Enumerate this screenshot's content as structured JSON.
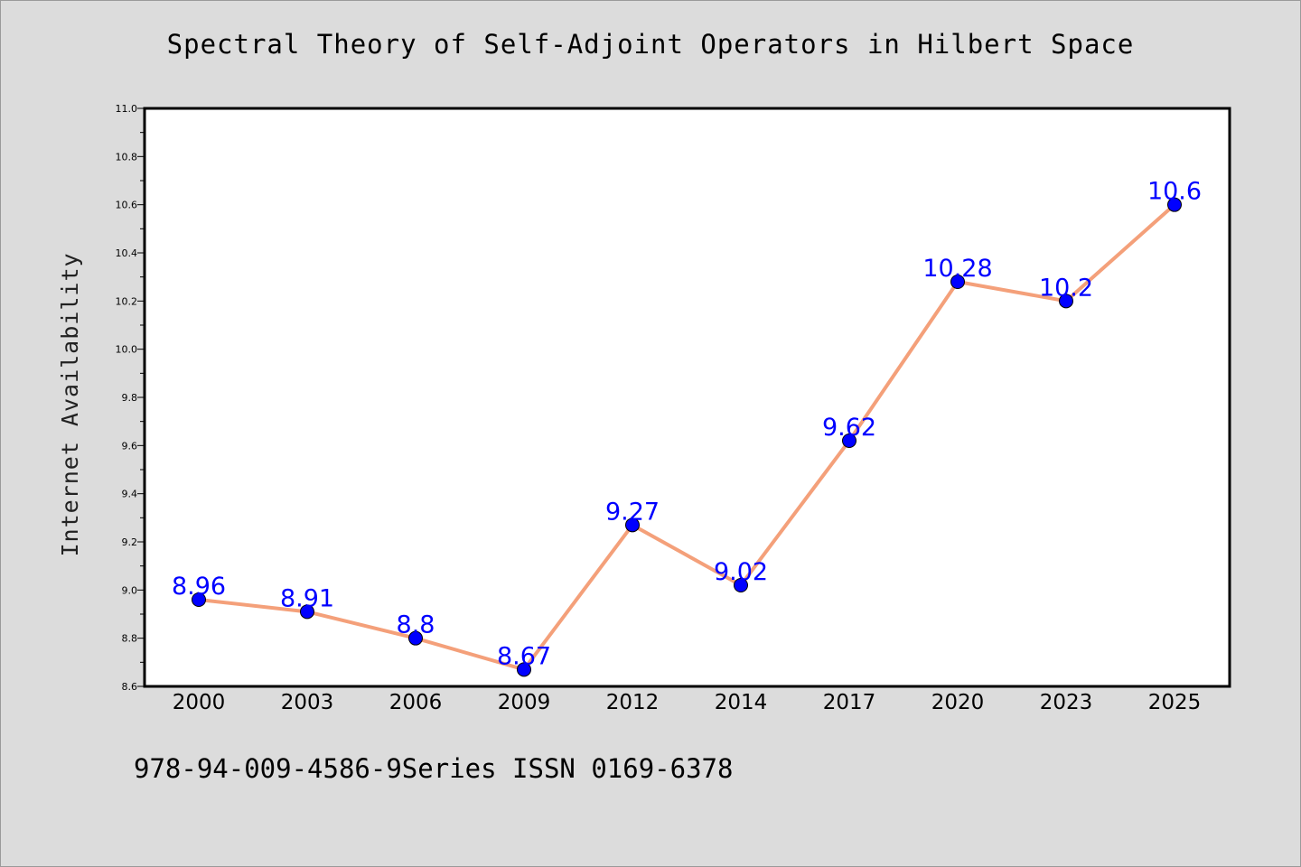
{
  "page": {
    "background": "#dcdcdc",
    "footer": "978-94-009-4586-9Series ISSN 0169-6378"
  },
  "chart_data": {
    "type": "line",
    "title": "Spectral Theory of Self-Adjoint Operators in Hilbert Space",
    "xlabel": "",
    "ylabel": "Internet Availability",
    "categories": [
      "2000",
      "2003",
      "2006",
      "2009",
      "2012",
      "2014",
      "2017",
      "2020",
      "2023",
      "2025"
    ],
    "series": [
      {
        "values": [
          8.96,
          8.91,
          8.8,
          8.67,
          9.27,
          9.02,
          9.62,
          10.28,
          10.2,
          10.6
        ],
        "labels": [
          "8.96",
          "8.91",
          "8.8",
          "8.67",
          "9.27",
          "9.02",
          "9.62",
          "10.28",
          "10.2",
          "10.6"
        ],
        "line_color": "#f4a07a",
        "marker_color": "#0000ff",
        "label_color": "#0000ff"
      }
    ],
    "ylim": [
      8.6,
      11.0
    ],
    "yticks": [
      "8.6",
      "8.8",
      "9.0",
      "9.2",
      "9.4",
      "9.6",
      "9.8",
      "10.0",
      "10.2",
      "10.4",
      "10.6",
      "10.8",
      "11.0"
    ],
    "grid": false,
    "legend": "none"
  }
}
